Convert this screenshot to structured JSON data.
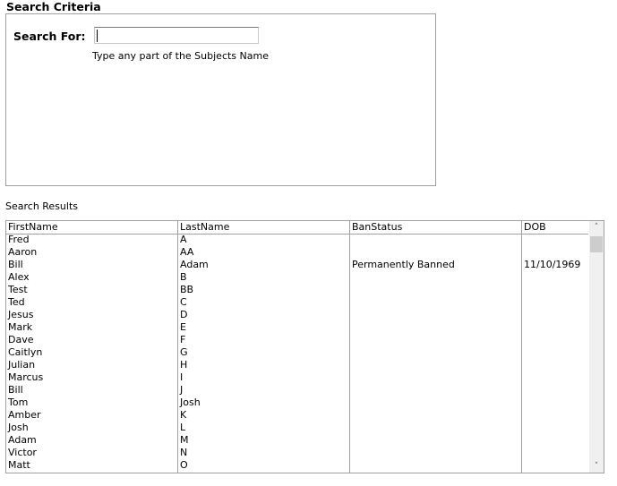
{
  "search_criteria": {
    "title": "Search Criteria",
    "label": "Search For:",
    "value": "",
    "hint": "Type any part of the Subjects Name"
  },
  "results": {
    "title": "Search Results",
    "columns": [
      "FirstName",
      "LastName",
      "BanStatus",
      "DOB"
    ],
    "rows": [
      [
        "Fred",
        "A",
        "",
        ""
      ],
      [
        "Aaron",
        "AA",
        "",
        ""
      ],
      [
        "Bill",
        "Adam",
        "Permanently Banned",
        "11/10/1969"
      ],
      [
        "Alex",
        "B",
        "",
        ""
      ],
      [
        "Test",
        "BB",
        "",
        ""
      ],
      [
        "Ted",
        "C",
        "",
        ""
      ],
      [
        "Jesus",
        "D",
        "",
        ""
      ],
      [
        "Mark",
        "E",
        "",
        ""
      ],
      [
        "Dave",
        "F",
        "",
        ""
      ],
      [
        "Caitlyn",
        "G",
        "",
        ""
      ],
      [
        "Julian",
        "H",
        "",
        ""
      ],
      [
        "Marcus",
        "I",
        "",
        ""
      ],
      [
        "Bill",
        "J",
        "",
        ""
      ],
      [
        "Tom",
        "Josh",
        "",
        ""
      ],
      [
        "Amber",
        "K",
        "",
        ""
      ],
      [
        "Josh",
        "L",
        "",
        ""
      ],
      [
        "Adam",
        "M",
        "",
        ""
      ],
      [
        "Victor",
        "N",
        "",
        ""
      ],
      [
        "Matt",
        "O",
        "",
        ""
      ]
    ],
    "scroll_up_icon": "chevron-up-icon",
    "scroll_down_icon": "chevron-down-icon"
  }
}
